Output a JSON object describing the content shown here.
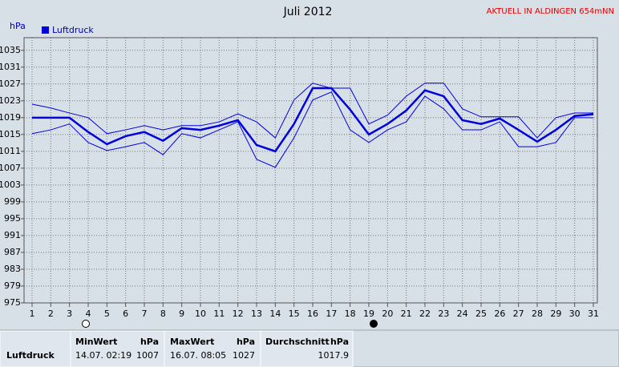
{
  "chart_data": {
    "type": "line",
    "title": "Juli 2012",
    "subtitle": "AKTUELL IN ALDINGEN 654mNN",
    "y_label": "hPa",
    "x": [
      1,
      2,
      3,
      4,
      5,
      6,
      7,
      8,
      9,
      10,
      11,
      12,
      13,
      14,
      15,
      16,
      17,
      18,
      19,
      20,
      21,
      22,
      23,
      24,
      25,
      26,
      27,
      28,
      29,
      30,
      31
    ],
    "xlim": [
      1,
      31
    ],
    "xticks": [
      1,
      2,
      3,
      4,
      5,
      6,
      7,
      8,
      9,
      10,
      11,
      12,
      13,
      14,
      15,
      16,
      17,
      18,
      19,
      20,
      21,
      22,
      23,
      24,
      25,
      26,
      27,
      28,
      29,
      30,
      31
    ],
    "ylim": [
      975,
      1038
    ],
    "yticks": [
      975,
      979,
      983,
      987,
      991,
      995,
      999,
      1003,
      1007,
      1011,
      1015,
      1019,
      1023,
      1027,
      1031,
      1035
    ],
    "grid": true,
    "series": [
      {
        "name": "Luftdruck",
        "color": "#0000dd",
        "width": 2.5,
        "values": [
          1019,
          1019,
          1019,
          1015.6,
          1012.7,
          1014.6,
          1015.6,
          1013.5,
          1016.5,
          1016.1,
          1017.1,
          1018.4,
          1012.5,
          1011,
          1017.5,
          1026,
          1026,
          1020.9,
          1015,
          1017.5,
          1020.7,
          1025.5,
          1024.1,
          1018.4,
          1017.5,
          1018.8,
          1016.1,
          1013.3,
          1016.1,
          1019.4,
          1019.8
        ]
      },
      {
        "color": "#0000dd",
        "width": 1,
        "values": [
          1022.2,
          1021.3,
          1020.1,
          1019,
          1015.2,
          1016.1,
          1017.1,
          1016.1,
          1017.1,
          1017.1,
          1018,
          1019.9,
          1018,
          1014.2,
          1023.2,
          1027.2,
          1026,
          1026,
          1017.5,
          1019.6,
          1024.1,
          1027.2,
          1027.2,
          1021.1,
          1019.2,
          1019.2,
          1019.2,
          1014.2,
          1019,
          1020.1,
          1020.1
        ]
      },
      {
        "color": "#0000dd",
        "width": 1,
        "values": [
          1015.2,
          1016.1,
          1017.5,
          1013.1,
          1011.2,
          1012.1,
          1013.1,
          1010.2,
          1015.2,
          1014.2,
          1016.1,
          1018,
          1009.1,
          1007.2,
          1014.2,
          1023.2,
          1025.1,
          1016.1,
          1013.1,
          1016.1,
          1018,
          1024.1,
          1021.1,
          1016.1,
          1016.1,
          1018,
          1012.1,
          1012.1,
          1013.1,
          1019,
          1019
        ]
      }
    ]
  },
  "table": {
    "header": [
      "MinWert",
      "hPa",
      "MaxWert",
      "hPa",
      "Durchschnitt",
      "hPa"
    ],
    "rows": [
      [
        "Luftdruck",
        "14.07. 02:19",
        "1007",
        "16.07. 08:05",
        "1027",
        "1017.9"
      ]
    ]
  }
}
